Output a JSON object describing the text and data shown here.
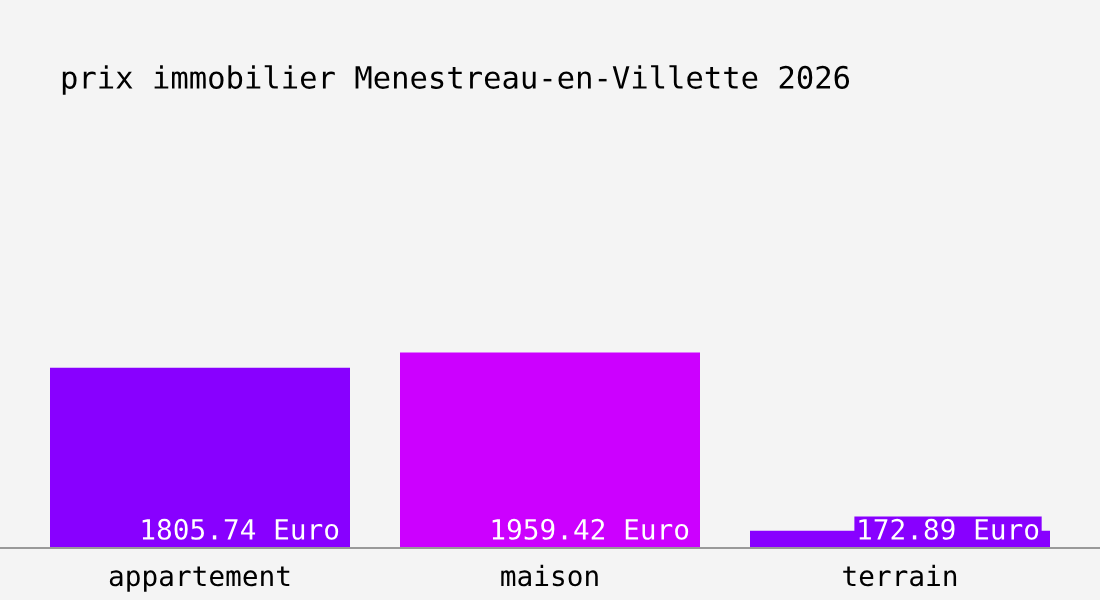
{
  "chart_data": {
    "type": "bar",
    "title": "prix immobilier Menestreau-en-Villette 2026",
    "categories": [
      "appartement",
      "maison",
      "terrain"
    ],
    "values": [
      1805.74,
      1959.42,
      172.89
    ],
    "colors": [
      "#8800ff",
      "#cc00ff",
      "#8800ff"
    ],
    "value_labels": [
      "1805.74 Euro",
      "1959.42 Euro",
      "172.89 Euro"
    ],
    "grid": false,
    "legend": false
  }
}
